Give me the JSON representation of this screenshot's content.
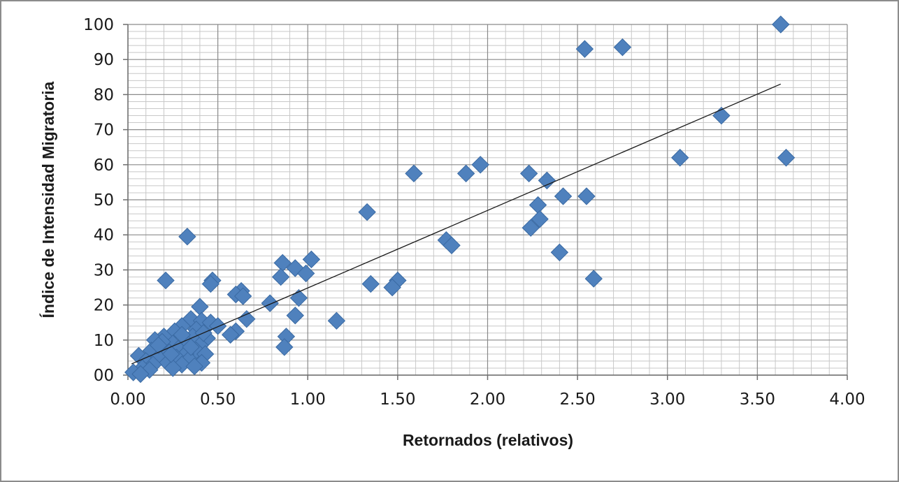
{
  "chart_data": {
    "type": "scatter",
    "title": "",
    "xlabel": "Retornados (relativos)",
    "ylabel": "Índice de Intensidad Migratoria",
    "xlim": [
      0,
      4
    ],
    "ylim": [
      0,
      100
    ],
    "x_tick_labels": [
      "0.00",
      "0.50",
      "1.00",
      "1.50",
      "2.00",
      "2.50",
      "3.00",
      "3.50",
      "4.00"
    ],
    "x_tick_values": [
      0,
      0.5,
      1,
      1.5,
      2,
      2.5,
      3,
      3.5,
      4
    ],
    "y_tick_labels": [
      "00",
      "10",
      "20",
      "30",
      "40",
      "50",
      "60",
      "70",
      "80",
      "90",
      "100"
    ],
    "y_tick_values": [
      0,
      10,
      20,
      30,
      40,
      50,
      60,
      70,
      80,
      90,
      100
    ],
    "grid": true,
    "marker_color": "#4f81bd",
    "marker_edge_color": "#3a6aa3",
    "trendline": {
      "type": "linear",
      "x": [
        0.02,
        3.63
      ],
      "y": [
        3.2,
        83.0
      ],
      "color": "#1a1a1a"
    },
    "series": [
      {
        "name": "Índice de Intensidad Migratoria",
        "points": [
          [
            3.63,
            100
          ],
          [
            2.54,
            93
          ],
          [
            2.75,
            93.5
          ],
          [
            3.3,
            74
          ],
          [
            3.07,
            62
          ],
          [
            3.66,
            62
          ],
          [
            1.96,
            60
          ],
          [
            1.59,
            57.5
          ],
          [
            1.88,
            57.5
          ],
          [
            2.23,
            57.5
          ],
          [
            2.33,
            55.5
          ],
          [
            2.42,
            51
          ],
          [
            2.55,
            51
          ],
          [
            2.28,
            48.5
          ],
          [
            1.33,
            46.5
          ],
          [
            2.29,
            44.5
          ],
          [
            2.24,
            42
          ],
          [
            0.33,
            39.5
          ],
          [
            1.77,
            38.5
          ],
          [
            1.8,
            37
          ],
          [
            2.4,
            35
          ],
          [
            1.02,
            33
          ],
          [
            0.86,
            32
          ],
          [
            0.93,
            30.5
          ],
          [
            0.99,
            29
          ],
          [
            0.85,
            28
          ],
          [
            2.59,
            27.5
          ],
          [
            0.21,
            27
          ],
          [
            0.47,
            27
          ],
          [
            1.5,
            27
          ],
          [
            0.46,
            26
          ],
          [
            1.35,
            26
          ],
          [
            1.47,
            25
          ],
          [
            0.63,
            24
          ],
          [
            0.6,
            23
          ],
          [
            0.64,
            22.5
          ],
          [
            0.95,
            22
          ],
          [
            0.79,
            20.5
          ],
          [
            0.4,
            19.5
          ],
          [
            0.93,
            17
          ],
          [
            0.35,
            16
          ],
          [
            0.66,
            16
          ],
          [
            1.16,
            15.5
          ],
          [
            0.41,
            15.5
          ],
          [
            0.46,
            15
          ],
          [
            0.3,
            14
          ],
          [
            0.5,
            14
          ],
          [
            0.38,
            13
          ],
          [
            0.26,
            12.5
          ],
          [
            0.6,
            12.5
          ],
          [
            0.57,
            11.5
          ],
          [
            0.2,
            11
          ],
          [
            0.88,
            11
          ],
          [
            0.36,
            11
          ],
          [
            0.15,
            10
          ],
          [
            0.44,
            10.5
          ],
          [
            0.25,
            9
          ],
          [
            0.33,
            9
          ],
          [
            0.4,
            8.5
          ],
          [
            0.87,
            8
          ],
          [
            0.2,
            8
          ],
          [
            0.28,
            7.5
          ],
          [
            0.38,
            7
          ],
          [
            0.13,
            7
          ],
          [
            0.23,
            6.5
          ],
          [
            0.32,
            6
          ],
          [
            0.06,
            5.5
          ],
          [
            0.43,
            6
          ],
          [
            0.17,
            5
          ],
          [
            0.27,
            5
          ],
          [
            0.34,
            4.5
          ],
          [
            0.1,
            4
          ],
          [
            0.41,
            3.5
          ],
          [
            0.22,
            3.5
          ],
          [
            0.3,
            3
          ],
          [
            0.14,
            3
          ],
          [
            0.37,
            2.5
          ],
          [
            0.08,
            2
          ],
          [
            0.25,
            2
          ],
          [
            0.12,
            1.5
          ],
          [
            0.03,
            0.8
          ],
          [
            0.07,
            0.3
          ],
          [
            0.19,
            9.5
          ],
          [
            0.3,
            11.5
          ],
          [
            0.35,
            8
          ],
          [
            0.42,
            12
          ],
          [
            0.24,
            6
          ],
          [
            0.17,
            8.5
          ]
        ]
      }
    ]
  }
}
